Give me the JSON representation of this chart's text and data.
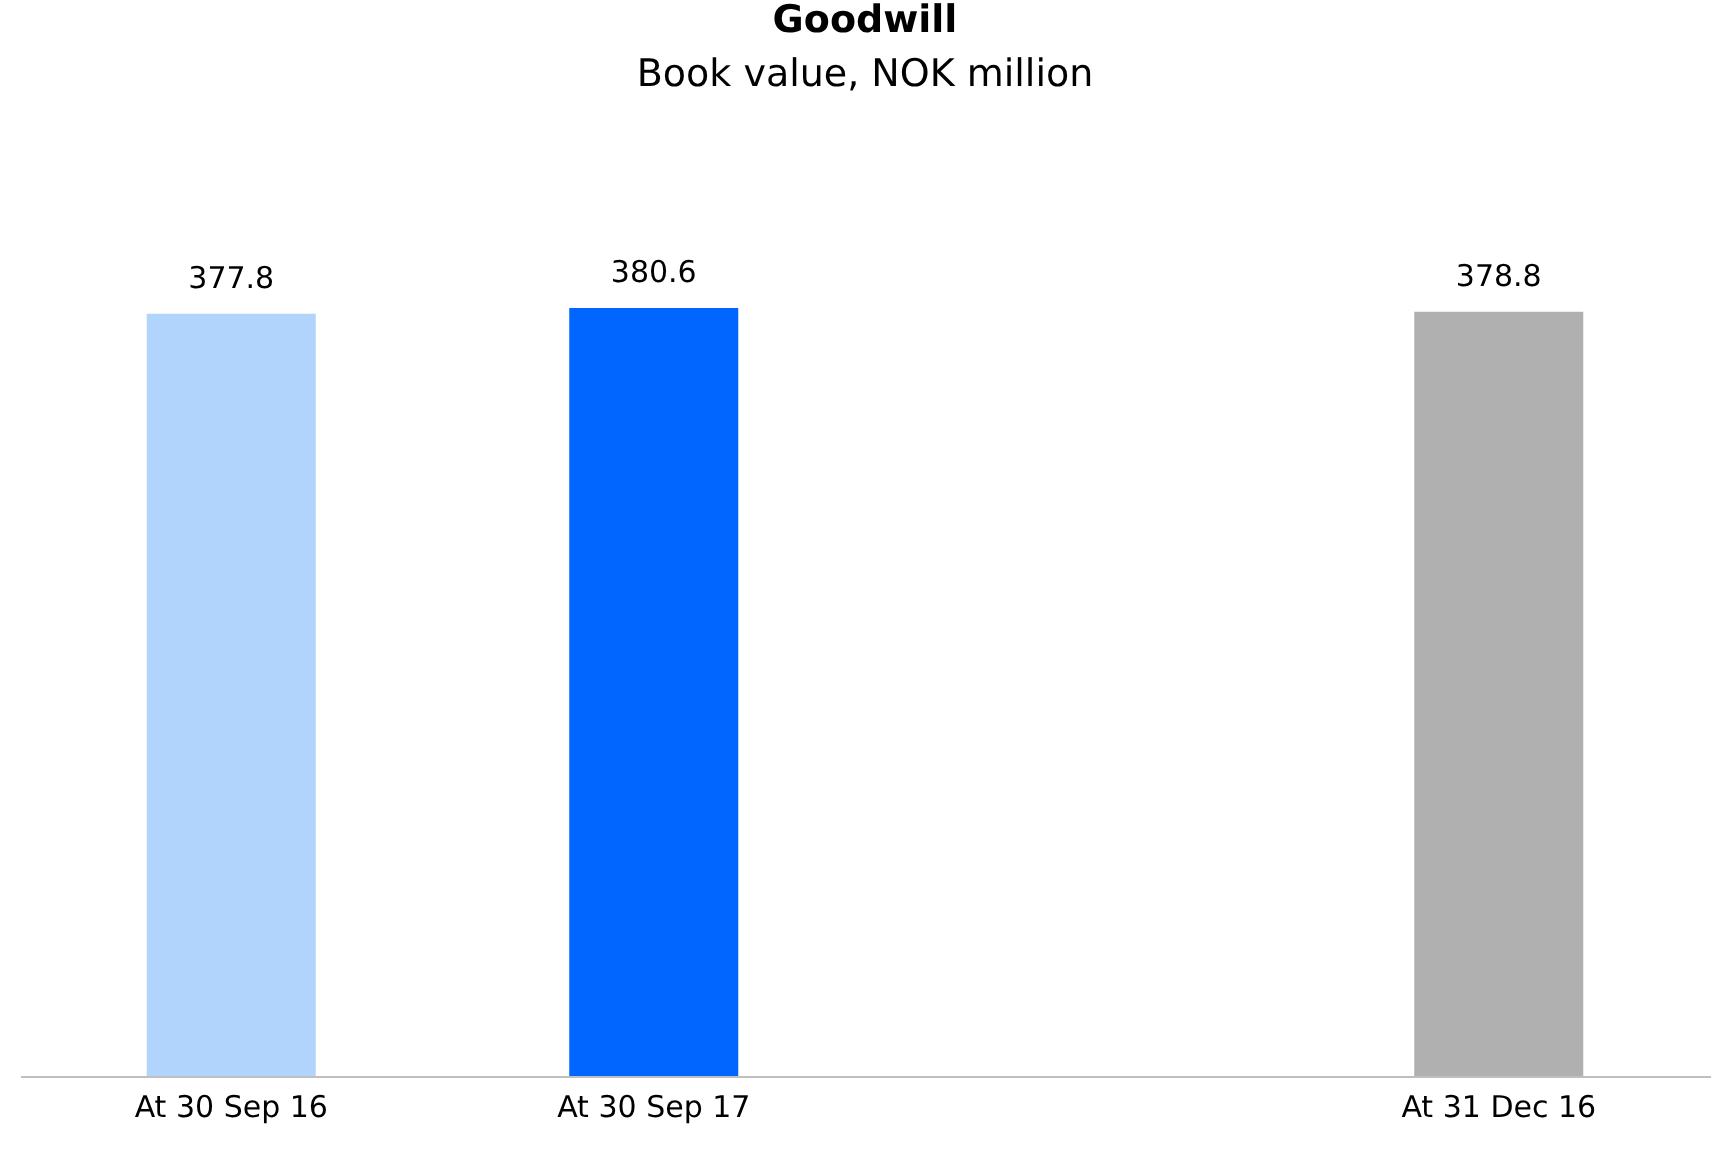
{
  "chart_data": {
    "type": "bar",
    "title": "Goodwill",
    "subtitle": "Book value, NOK million",
    "categories": [
      "At 30 Sep 16",
      "At 30 Sep 17",
      null,
      "At 31 Dec 16"
    ],
    "values": [
      377.8,
      380.6,
      null,
      378.8
    ],
    "colors": [
      "#b0d4fc",
      "#0066ff",
      "#cccccc",
      "#b0b0b0"
    ],
    "data_labels": true,
    "tick_labels": "x",
    "grid": false
  }
}
